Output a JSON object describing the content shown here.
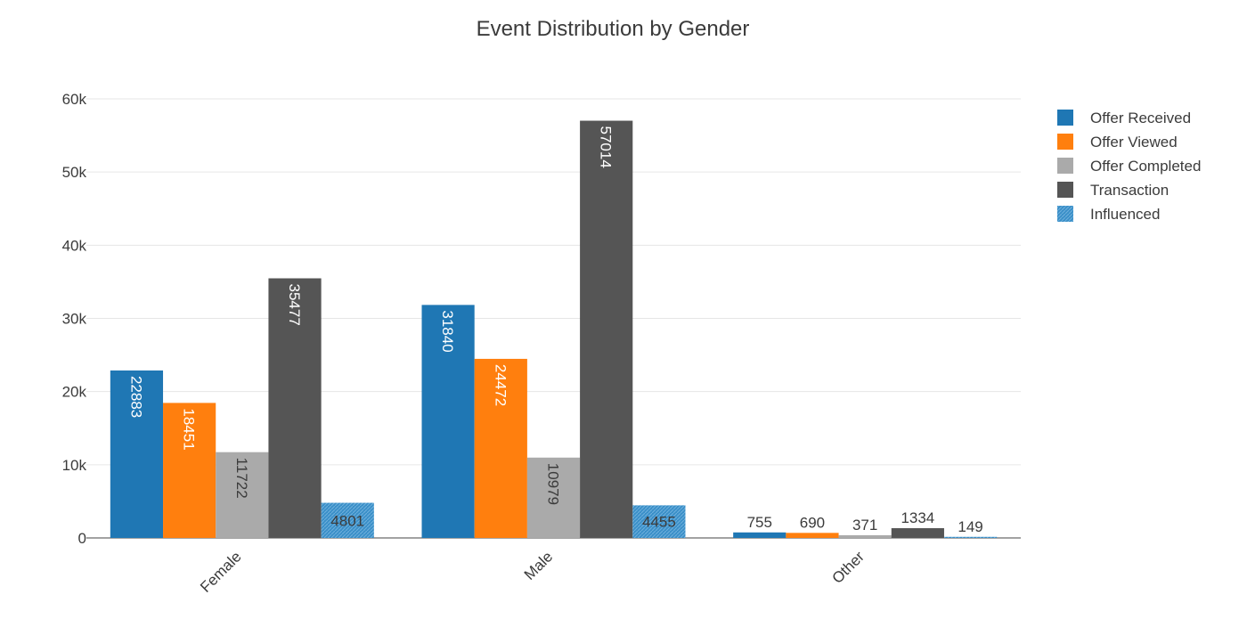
{
  "chart_data": {
    "type": "bar",
    "title": "Event Distribution by Gender",
    "categories": [
      "Female",
      "Male",
      "Other"
    ],
    "ylim": [
      0,
      60000
    ],
    "yticks": [
      0,
      10000,
      20000,
      30000,
      40000,
      50000,
      60000
    ],
    "ytick_labels": [
      "0",
      "10k",
      "20k",
      "30k",
      "40k",
      "50k",
      "60k"
    ],
    "grid": true,
    "legend_position": "top-right",
    "series": [
      {
        "name": "Offer Received",
        "color": "#1f77b4",
        "pattern": "solid",
        "values": [
          22883,
          31840,
          755
        ]
      },
      {
        "name": "Offer Viewed",
        "color": "#ff7f0e",
        "pattern": "solid",
        "values": [
          18451,
          24472,
          690
        ]
      },
      {
        "name": "Offer Completed",
        "color": "#aaaaaa",
        "pattern": "solid",
        "values": [
          11722,
          10979,
          371
        ]
      },
      {
        "name": "Transaction",
        "color": "#555555",
        "pattern": "solid",
        "values": [
          35477,
          57014,
          1334
        ]
      },
      {
        "name": "Influenced",
        "color": "#3a8fc8",
        "pattern": "hatched",
        "values": [
          4801,
          4455,
          149
        ]
      }
    ]
  }
}
